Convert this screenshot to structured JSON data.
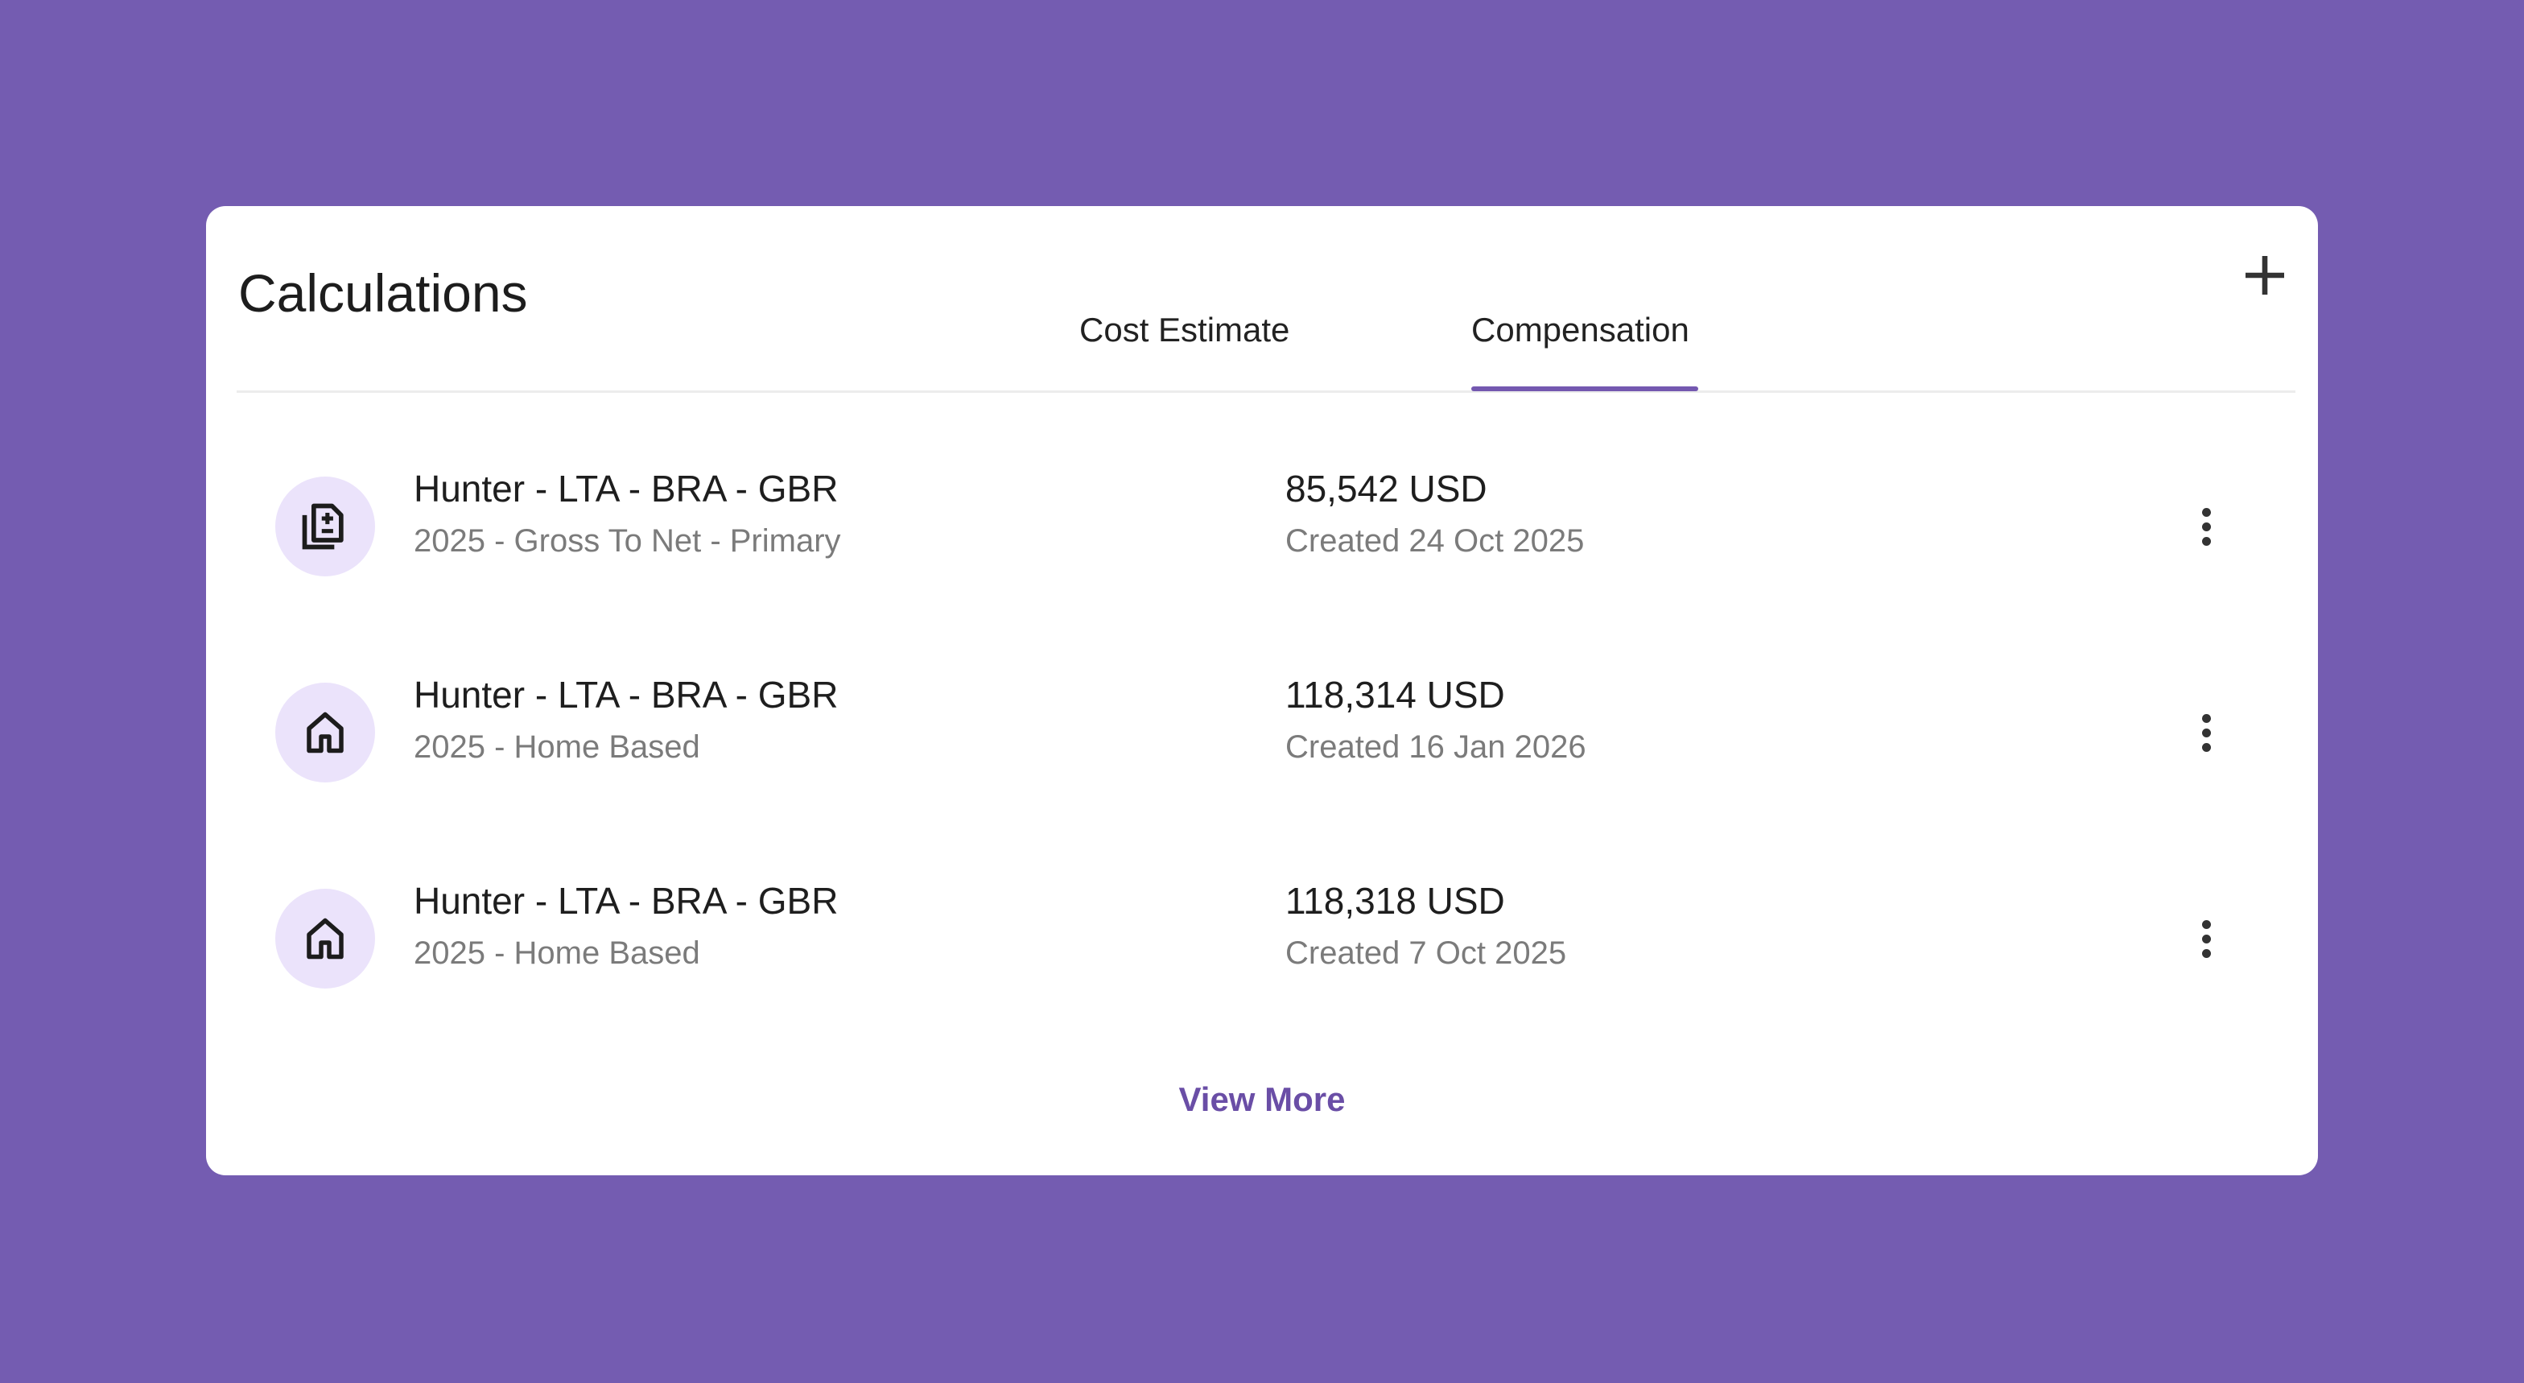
{
  "header": {
    "title": "Calculations",
    "add_icon": "plus-icon"
  },
  "tabs": [
    {
      "label": "Cost Estimate",
      "active": false
    },
    {
      "label": "Compensation",
      "active": true
    }
  ],
  "items": [
    {
      "icon": "calculate-document-icon",
      "name": "Hunter - LTA - BRA - GBR",
      "subtitle": "2025 - Gross To Net - Primary",
      "amount": "85,542 USD",
      "created": "Created 24 Oct 2025"
    },
    {
      "icon": "home-icon",
      "name": "Hunter - LTA - BRA - GBR",
      "subtitle": "2025 - Home Based",
      "amount": "118,314 USD",
      "created": "Created 16 Jan 2026"
    },
    {
      "icon": "home-icon",
      "name": "Hunter - LTA - BRA - GBR",
      "subtitle": "2025 - Home Based",
      "amount": "118,318 USD",
      "created": "Created 7 Oct 2025"
    }
  ],
  "footer": {
    "view_more": "View More"
  },
  "colors": {
    "background": "#745cb1",
    "accent": "#7458b0",
    "avatar_bg": "#ebe3fb"
  }
}
